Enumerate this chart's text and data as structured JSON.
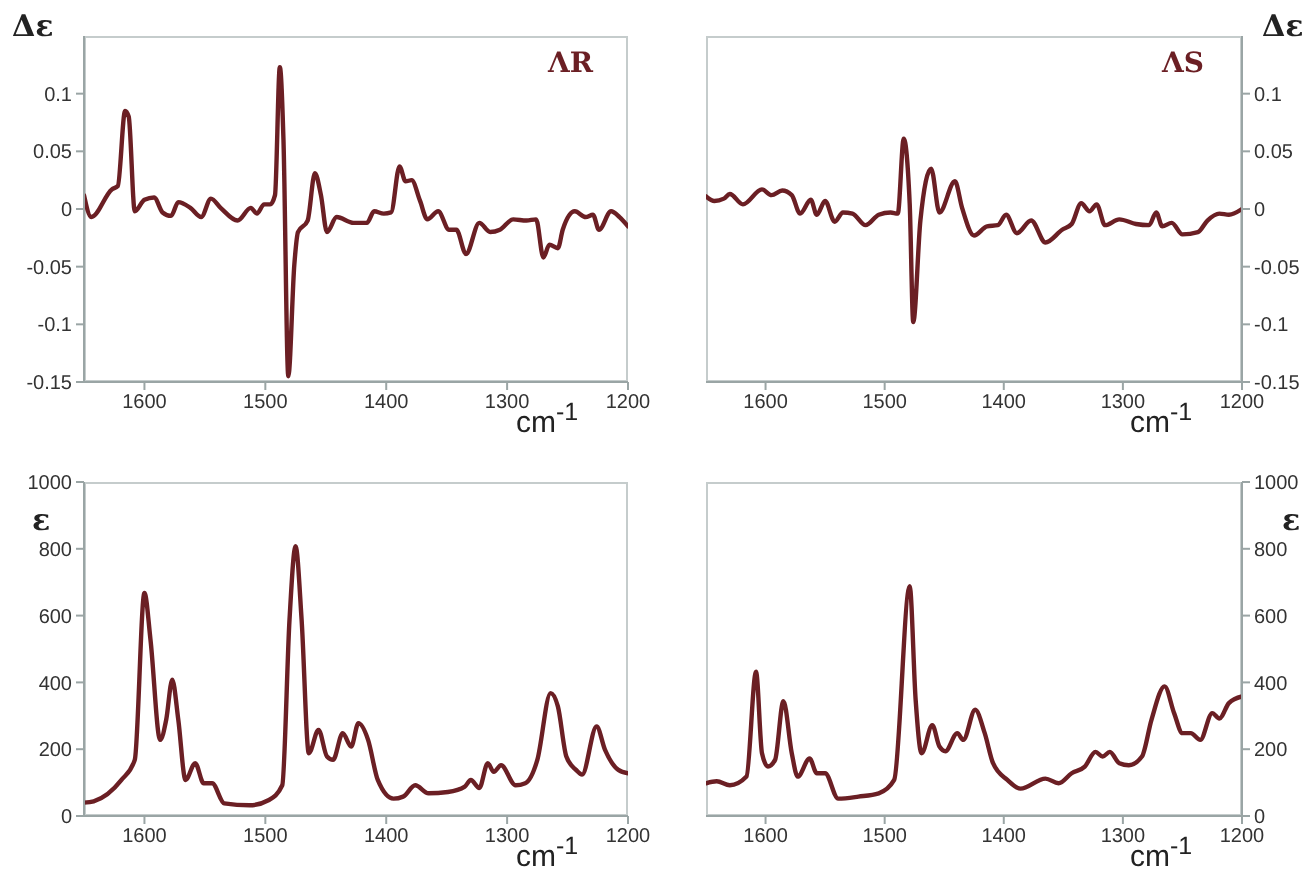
{
  "chart_data": [
    {
      "type": "line",
      "annotations": [
        "ΛR"
      ],
      "xlabel": "cm$^{-1}$",
      "ylabel": "Δε",
      "xlim": [
        1650,
        1200
      ],
      "xticks": [
        1600,
        1500,
        1400,
        1300,
        1200
      ],
      "ylim": [
        -0.15,
        0.15
      ],
      "yticks": [
        -0.15,
        -0.1,
        -0.05,
        0,
        0.05,
        0.1
      ],
      "x": [
        1650,
        1644,
        1627,
        1622,
        1616,
        1613,
        1608,
        1600,
        1592,
        1585,
        1578,
        1572,
        1562,
        1553,
        1545,
        1537,
        1523,
        1512,
        1507,
        1501,
        1496,
        1492,
        1488,
        1485,
        1481,
        1476,
        1473,
        1465,
        1459,
        1454,
        1449,
        1441,
        1427,
        1416,
        1410,
        1402,
        1396,
        1389,
        1384,
        1379,
        1372,
        1366,
        1357,
        1348,
        1342,
        1334,
        1323,
        1314,
        1306,
        1295,
        1284,
        1276,
        1270,
        1265,
        1258,
        1254,
        1244,
        1235,
        1229,
        1224,
        1214,
        1207,
        1200
      ],
      "series": [
        {
          "color": "#6b1f24",
          "values": [
            0.012,
            -0.007,
            0.017,
            0.02,
            0.085,
            0.08,
            -0.002,
            0.008,
            0.01,
            -0.003,
            -0.006,
            0.006,
            0.001,
            -0.007,
            0.009,
            0.001,
            -0.01,
            0.001,
            -0.004,
            0.004,
            0.004,
            0.012,
            0.123,
            0.06,
            -0.145,
            -0.048,
            -0.02,
            -0.01,
            0.031,
            0.012,
            -0.02,
            -0.007,
            -0.012,
            -0.012,
            -0.002,
            -0.004,
            -0.003,
            0.037,
            0.024,
            0.025,
            0.007,
            -0.009,
            -0.002,
            -0.018,
            -0.018,
            -0.039,
            -0.012,
            -0.02,
            -0.018,
            -0.009,
            -0.01,
            -0.009,
            -0.042,
            -0.031,
            -0.034,
            -0.018,
            -0.002,
            -0.007,
            -0.005,
            -0.018,
            -0.002,
            -0.007,
            -0.015
          ]
        }
      ]
    },
    {
      "type": "line",
      "annotations": [
        "ΛS"
      ],
      "xlabel": "cm$^{-1}$",
      "y2label": "Δε",
      "xlim": [
        1650,
        1200
      ],
      "xticks": [
        1600,
        1500,
        1400,
        1300,
        1200
      ],
      "y2lim": [
        -0.15,
        0.15
      ],
      "y2ticks": [
        -0.15,
        -0.1,
        -0.05,
        0,
        0.05,
        0.1
      ],
      "x": [
        1650,
        1643,
        1635,
        1630,
        1619,
        1603,
        1595,
        1586,
        1578,
        1571,
        1562,
        1557,
        1550,
        1542,
        1535,
        1527,
        1516,
        1505,
        1495,
        1489,
        1484,
        1479,
        1476,
        1470,
        1461,
        1454,
        1441,
        1435,
        1425,
        1414,
        1405,
        1398,
        1389,
        1377,
        1365,
        1351,
        1343,
        1335,
        1328,
        1322,
        1315,
        1303,
        1289,
        1278,
        1272,
        1267,
        1259,
        1250,
        1237,
        1229,
        1219,
        1211,
        1200
      ],
      "series": [
        {
          "axis": "y2",
          "color": "#6b1f24",
          "values": [
            0.011,
            0.007,
            0.009,
            0.013,
            0.004,
            0.017,
            0.012,
            0.016,
            0.012,
            -0.004,
            0.008,
            -0.005,
            0.007,
            -0.011,
            -0.003,
            -0.004,
            -0.014,
            -0.005,
            -0.003,
            -0.004,
            0.061,
            0.005,
            -0.098,
            -0.01,
            0.035,
            -0.003,
            0.024,
            0.001,
            -0.023,
            -0.015,
            -0.014,
            -0.005,
            -0.021,
            -0.01,
            -0.029,
            -0.018,
            -0.013,
            0.005,
            -0.002,
            0.004,
            -0.014,
            -0.009,
            -0.013,
            -0.014,
            -0.003,
            -0.015,
            -0.012,
            -0.022,
            -0.02,
            -0.01,
            -0.004,
            -0.005,
            0
          ]
        }
      ]
    },
    {
      "type": "line",
      "xlabel": "cm$^{-1}$",
      "ylabel": "ε",
      "xlim": [
        1650,
        1200
      ],
      "xticks": [
        1600,
        1500,
        1400,
        1300,
        1200
      ],
      "ylim": [
        0,
        1000
      ],
      "yticks": [
        0,
        200,
        400,
        600,
        800,
        1000
      ],
      "x": [
        1650,
        1642,
        1619,
        1608,
        1600,
        1595,
        1587,
        1582,
        1577,
        1572,
        1566,
        1558,
        1551,
        1544,
        1534,
        1513,
        1497,
        1486,
        1480,
        1475,
        1470,
        1464,
        1456,
        1449,
        1444,
        1436,
        1429,
        1423,
        1415,
        1407,
        1394,
        1386,
        1376,
        1365,
        1349,
        1335,
        1330,
        1323,
        1316,
        1311,
        1305,
        1293,
        1285,
        1275,
        1264,
        1258,
        1251,
        1243,
        1238,
        1226,
        1219,
        1208,
        1200
      ],
      "series": [
        {
          "color": "#6b1f24",
          "values": [
            40,
            44,
            108,
            168,
            668,
            528,
            228,
            288,
            408,
            288,
            108,
            158,
            98,
            98,
            38,
            32,
            48,
            92,
            588,
            808,
            588,
            188,
            258,
            178,
            168,
            248,
            208,
            278,
            228,
            108,
            52,
            58,
            92,
            68,
            72,
            88,
            108,
            84,
            158,
            132,
            152,
            92,
            98,
            168,
            368,
            328,
            178,
            138,
            124,
            268,
            198,
            138,
            128
          ]
        }
      ]
    },
    {
      "type": "line",
      "xlabel": "cm$^{-1}$",
      "y2label": "ε",
      "xlim": [
        1650,
        1200
      ],
      "xticks": [
        1600,
        1500,
        1400,
        1300,
        1200
      ],
      "y2lim": [
        0,
        1000
      ],
      "y2ticks": [
        0,
        200,
        400,
        600,
        800,
        1000
      ],
      "x": [
        1650,
        1641,
        1630,
        1616,
        1608,
        1603,
        1598,
        1592,
        1585,
        1578,
        1573,
        1563,
        1557,
        1550,
        1539,
        1522,
        1505,
        1492,
        1479,
        1474,
        1469,
        1460,
        1454,
        1449,
        1439,
        1434,
        1424,
        1416,
        1409,
        1397,
        1386,
        1365,
        1354,
        1343,
        1332,
        1323,
        1317,
        1311,
        1303,
        1295,
        1284,
        1276,
        1265,
        1257,
        1250,
        1243,
        1235,
        1225,
        1219,
        1211,
        1200
      ],
      "series": [
        {
          "axis": "y2",
          "color": "#6b1f24",
          "values": [
            98,
            104,
            92,
            118,
            432,
            188,
            148,
            168,
            344,
            188,
            118,
            172,
            128,
            128,
            52,
            58,
            68,
            108,
            688,
            348,
            188,
            272,
            208,
            194,
            248,
            228,
            318,
            248,
            158,
            108,
            82,
            112,
            98,
            128,
            148,
            192,
            178,
            192,
            158,
            152,
            178,
            288,
            388,
            308,
            248,
            248,
            228,
            308,
            292,
            338,
            358
          ]
        }
      ]
    }
  ]
}
